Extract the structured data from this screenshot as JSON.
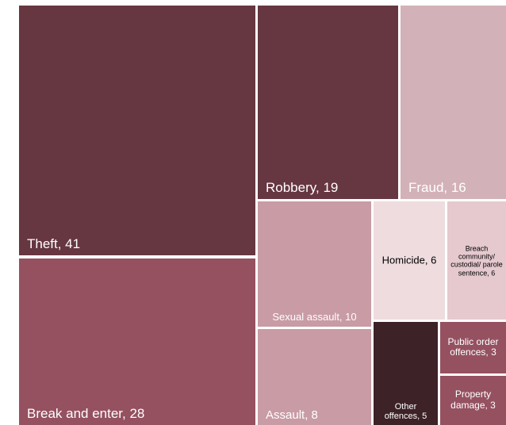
{
  "chart_data": {
    "type": "treemap",
    "title": "",
    "items": [
      {
        "label": "Theft, 41",
        "category": "Theft",
        "value": 41,
        "color": "#663641"
      },
      {
        "label": "Break and enter, 28",
        "category": "Break and enter",
        "value": 28,
        "color": "#955160"
      },
      {
        "label": "Robbery, 19",
        "category": "Robbery",
        "value": 19,
        "color": "#663641"
      },
      {
        "label": "Fraud, 16",
        "category": "Fraud",
        "value": 16,
        "color": "#d3b1b8"
      },
      {
        "label": "Sexual assault, 10",
        "category": "Sexual assault",
        "value": 10,
        "color": "#c89ba5"
      },
      {
        "label": "Assault, 8",
        "category": "Assault",
        "value": 8,
        "color": "#c89ba5"
      },
      {
        "label": "Homicide, 6",
        "category": "Homicide",
        "value": 6,
        "color": "#eedcdf"
      },
      {
        "label": "Breach community/ custodial/ parole sentence, 6",
        "category": "Breach community/ custodial/ parole sentence",
        "value": 6,
        "color": "#e5c9cf"
      },
      {
        "label": "Other offences, 5",
        "category": "Other offences",
        "value": 5,
        "color": "#3d2228"
      },
      {
        "label": "Public order offences, 3",
        "category": "Public order offences",
        "value": 3,
        "color": "#955160"
      },
      {
        "label": "Property damage, 3",
        "category": "Property damage",
        "value": 3,
        "color": "#955160"
      }
    ]
  }
}
